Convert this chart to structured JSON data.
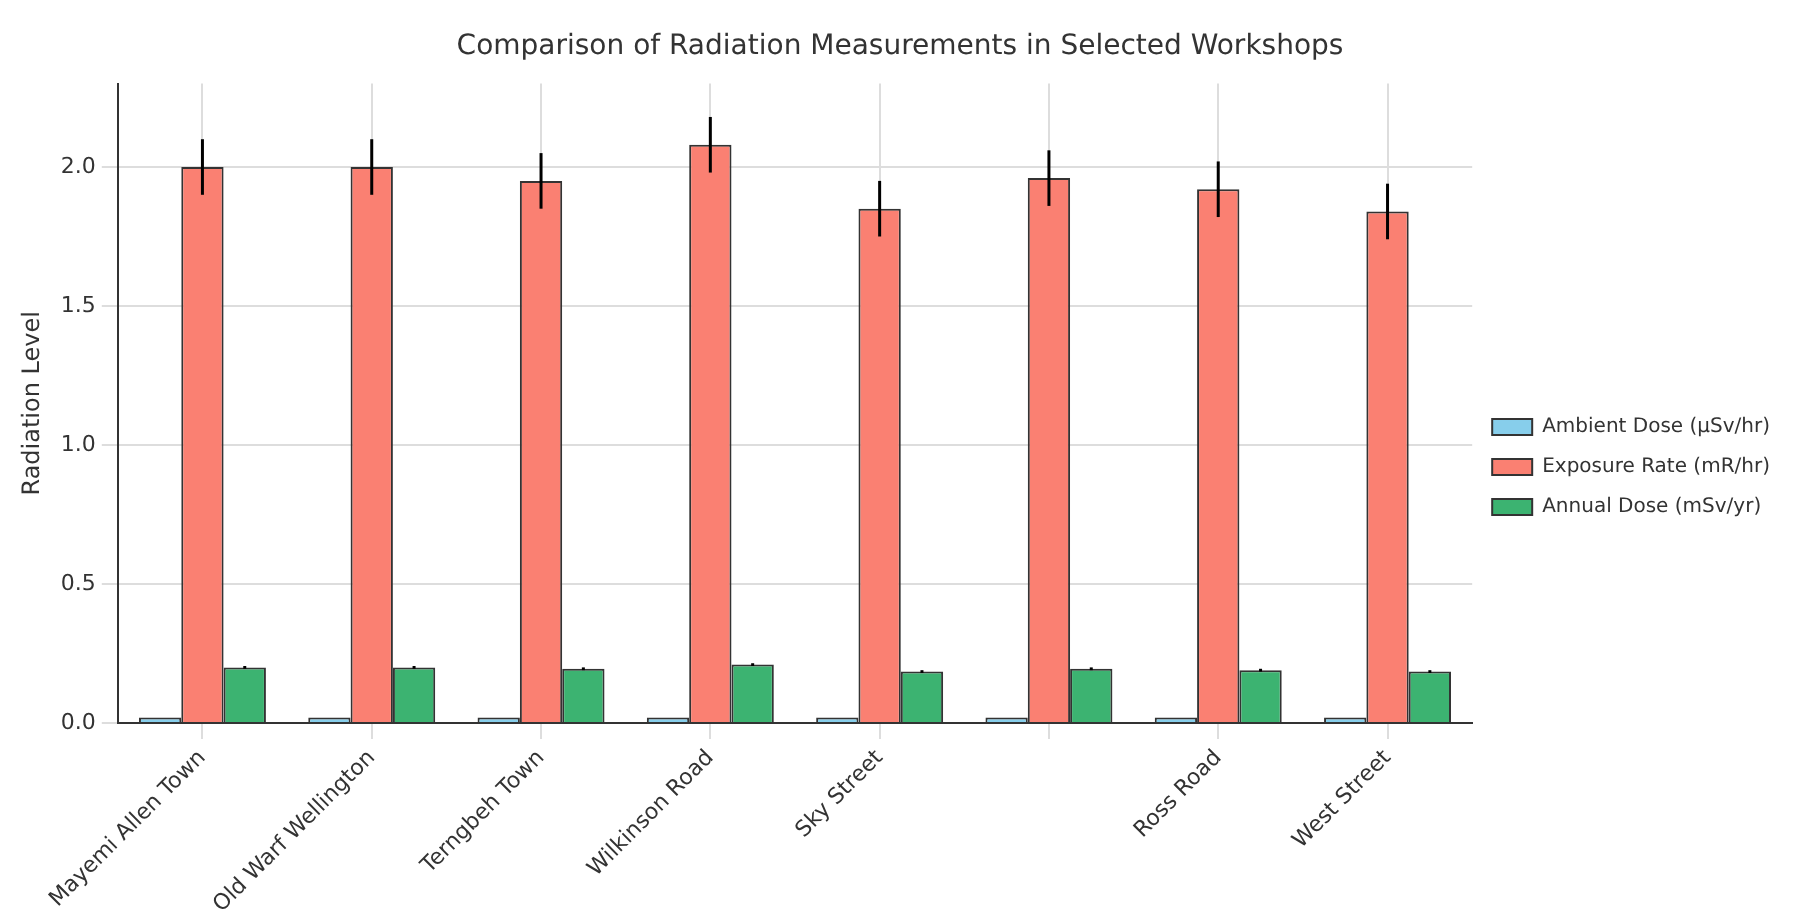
{
  "chart_data": {
    "type": "bar",
    "title": "Comparison of Radiation Measurements in Selected Workshops",
    "ylabel": "Radiation Level",
    "categories": [
      "Mayemi Allen Town",
      "Old Warf Wellington",
      "Terngbeh Town",
      "Wilkinson Road",
      "Sky Street",
      null,
      "Ross Road",
      "West Street"
    ],
    "series": [
      {
        "name": "Ambient Dose (µSv/hr)",
        "color": "#87ceeb",
        "values": [
          0.02,
          0.02,
          0.02,
          0.02,
          0.02,
          0.02,
          0.02,
          0.02
        ]
      },
      {
        "name": "Exposure Rate (mR/hr)",
        "color": "#fa8072",
        "values": [
          2.0,
          2.0,
          1.95,
          2.08,
          1.85,
          1.96,
          1.92,
          1.84
        ],
        "errors": [
          0.1,
          0.1,
          0.1,
          0.1,
          0.1,
          0.1,
          0.1,
          0.1
        ]
      },
      {
        "name": "Annual Dose (mSv/yr)",
        "color": "#3cb371",
        "values": [
          0.2,
          0.2,
          0.195,
          0.21,
          0.185,
          0.195,
          0.19,
          0.185
        ],
        "errors": [
          0.005,
          0.005,
          0.005,
          0.005,
          0.005,
          0.005,
          0.005,
          0.005
        ]
      }
    ],
    "ylim": [
      0,
      2.3
    ],
    "yticks": [
      {
        "value": 0,
        "label": "0.0"
      },
      0.5,
      {
        "value": 1,
        "label": "1.0"
      },
      1.5,
      {
        "value": 2,
        "label": "2.0"
      }
    ],
    "grid": true,
    "legend": "right"
  }
}
